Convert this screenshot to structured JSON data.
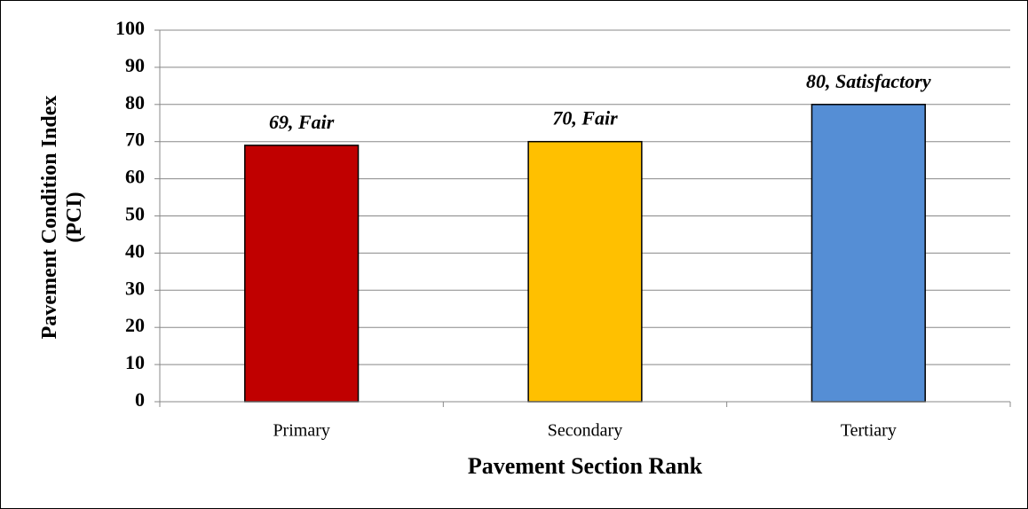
{
  "chart_data": {
    "type": "bar",
    "x_label": "Pavement Section Rank",
    "y_label": "Pavement Condition Index (PCI)",
    "categories": [
      "Primary",
      "Secondary",
      "Tertiary"
    ],
    "values": [
      69,
      70,
      80
    ],
    "value_labels": [
      "69, Fair",
      "70, Fair",
      "80, Satisfactory"
    ],
    "colors": [
      "#c00000",
      "#ffc000",
      "#558ed5"
    ],
    "ylim": [
      0,
      100
    ],
    "yticks": [
      0,
      10,
      20,
      30,
      40,
      50,
      60,
      70,
      80,
      90,
      100
    ],
    "grid": true
  }
}
